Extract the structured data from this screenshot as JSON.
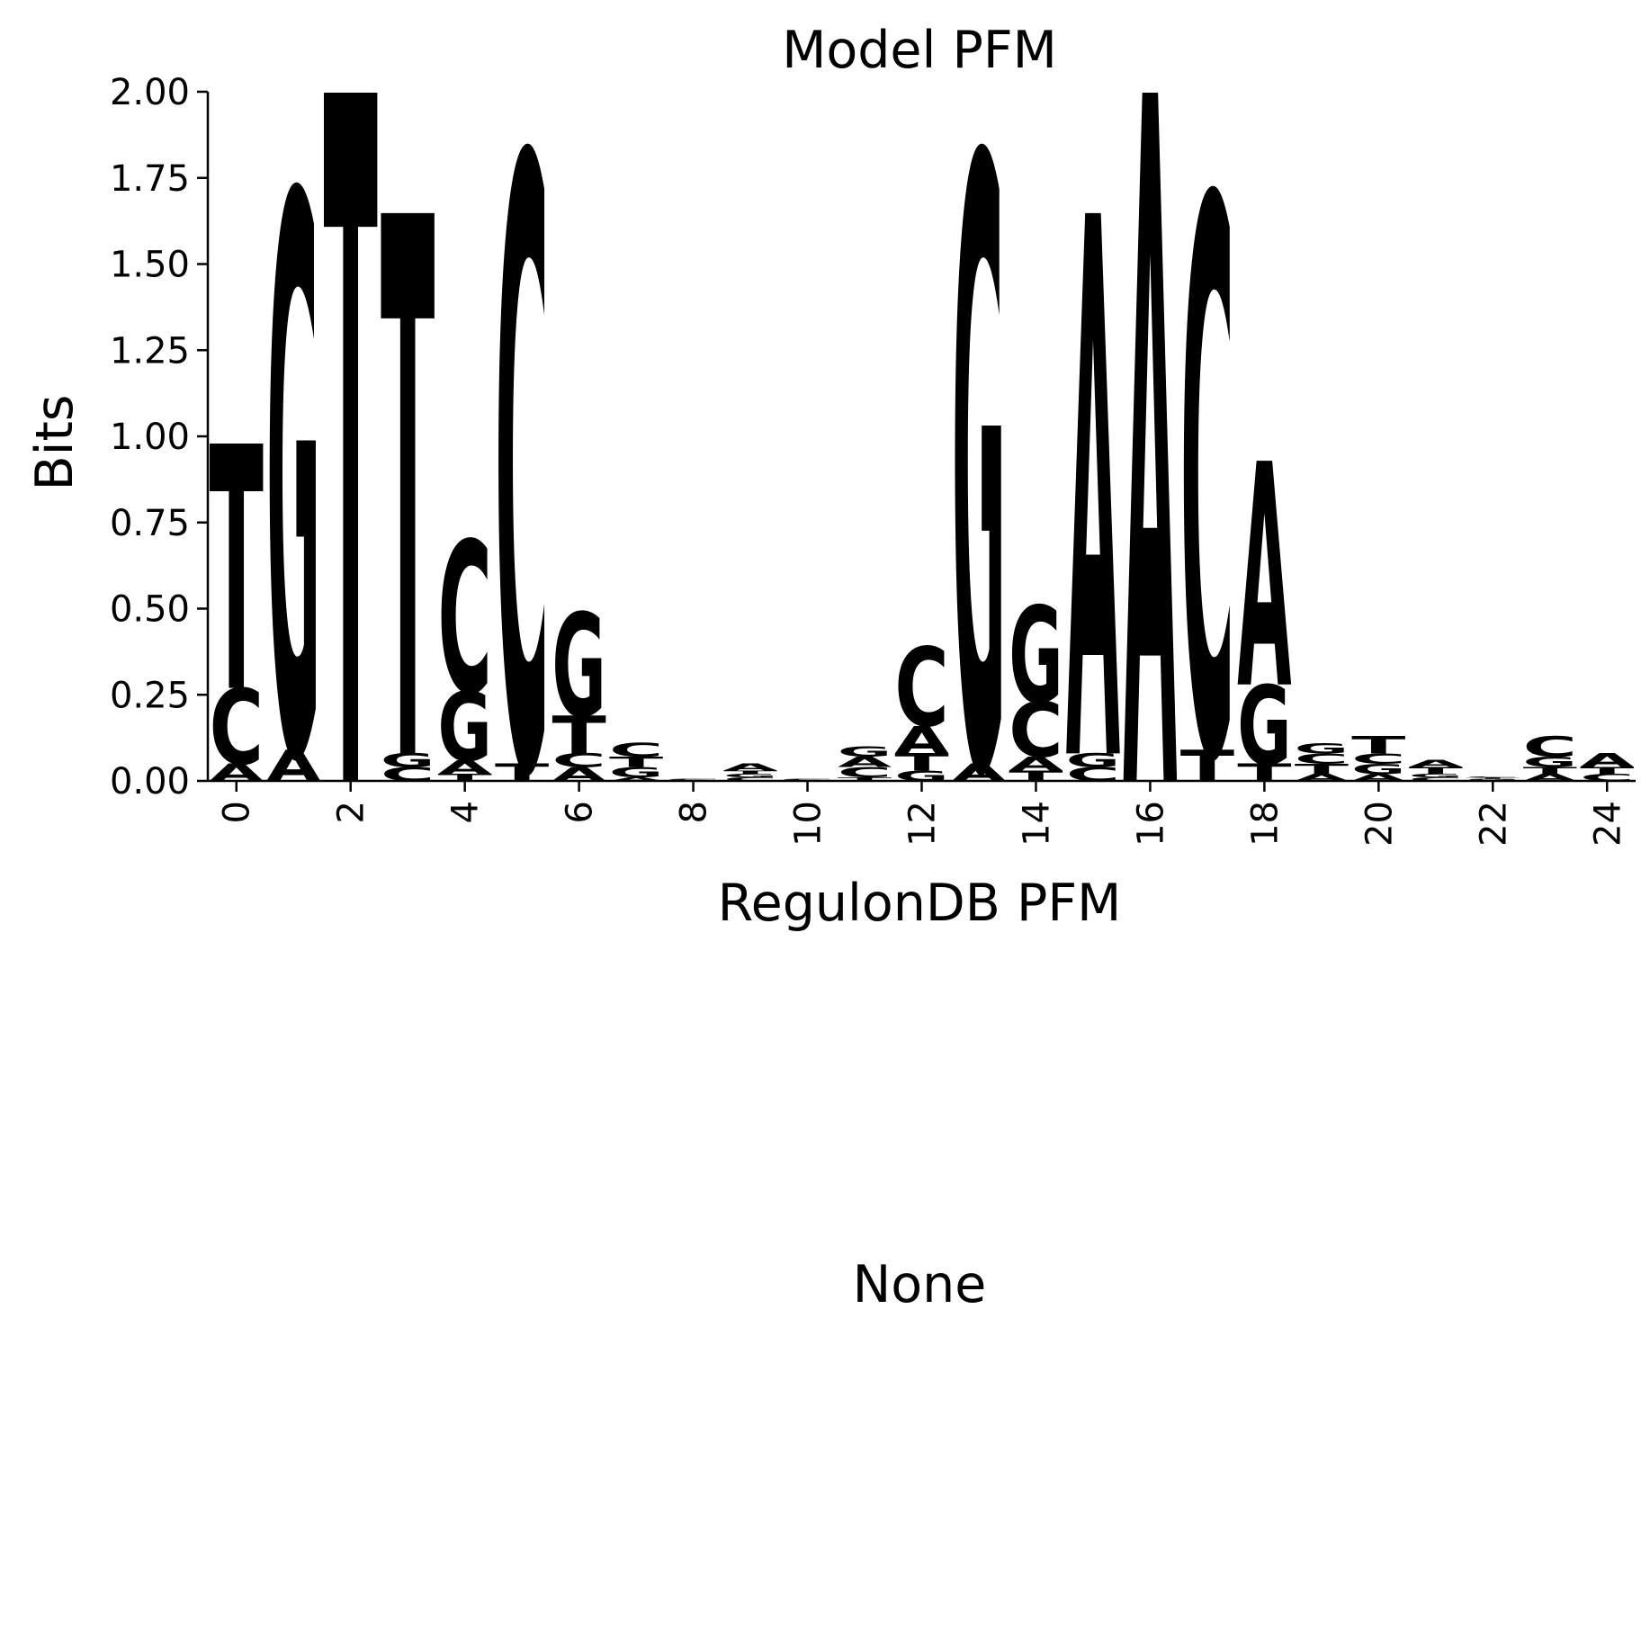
{
  "chart_data": [
    {
      "type": "sequence-logo",
      "title": "Model PFM",
      "xlabel": "RegulonDB PFM",
      "ylabel": "Bits",
      "ylim": [
        0,
        2.0
      ],
      "xlim": [
        -0.5,
        24.5
      ],
      "y_ticks": [
        "0.00",
        "0.25",
        "0.50",
        "0.75",
        "1.00",
        "1.25",
        "1.50",
        "1.75",
        "2.00"
      ],
      "x_ticks": [
        "0",
        "2",
        "4",
        "6",
        "8",
        "10",
        "12",
        "14",
        "16",
        "18",
        "20",
        "22",
        "24"
      ],
      "grid": false,
      "colors": {
        "A": "#ff0000",
        "C": "#0000ff",
        "G": "#ffa500",
        "T": "#008000"
      },
      "positions": [
        {
          "x": 0,
          "letters": [
            [
              "A",
              0.05
            ],
            [
              "C",
              0.22
            ],
            [
              "T",
              0.71
            ]
          ]
        },
        {
          "x": 1,
          "letters": [
            [
              "A",
              0.09
            ],
            [
              "G",
              1.62
            ]
          ]
        },
        {
          "x": 2,
          "letters": [
            [
              "T",
              2.0
            ]
          ]
        },
        {
          "x": 3,
          "letters": [
            [
              "C",
              0.04
            ],
            [
              "G",
              0.04
            ],
            [
              "T",
              1.57
            ]
          ]
        },
        {
          "x": 4,
          "letters": [
            [
              "T",
              0.02
            ],
            [
              "A",
              0.04
            ],
            [
              "G",
              0.2
            ],
            [
              "C",
              0.44
            ]
          ]
        },
        {
          "x": 5,
          "letters": [
            [
              "T",
              0.05
            ],
            [
              "C",
              1.77
            ]
          ]
        },
        {
          "x": 6,
          "letters": [
            [
              "A",
              0.04
            ],
            [
              "C",
              0.04
            ],
            [
              "T",
              0.11
            ],
            [
              "G",
              0.3
            ]
          ]
        },
        {
          "x": 7,
          "letters": [
            [
              "A",
              0.01
            ],
            [
              "G",
              0.03
            ],
            [
              "T",
              0.03
            ],
            [
              "C",
              0.04
            ]
          ]
        },
        {
          "x": 8,
          "letters": [
            [
              "A",
              0.003
            ],
            [
              "C",
              0.003
            ]
          ]
        },
        {
          "x": 9,
          "letters": [
            [
              "C",
              0.01
            ],
            [
              "G",
              0.01
            ],
            [
              "T",
              0.01
            ],
            [
              "A",
              0.02
            ]
          ]
        },
        {
          "x": 10,
          "letters": [
            [
              "A",
              0.003
            ],
            [
              "C",
              0.003
            ]
          ]
        },
        {
          "x": 11,
          "letters": [
            [
              "T",
              0.01
            ],
            [
              "C",
              0.03
            ],
            [
              "A",
              0.03
            ],
            [
              "G",
              0.03
            ]
          ]
        },
        {
          "x": 12,
          "letters": [
            [
              "G",
              0.03
            ],
            [
              "T",
              0.05
            ],
            [
              "A",
              0.08
            ],
            [
              "C",
              0.23
            ]
          ]
        },
        {
          "x": 13,
          "letters": [
            [
              "A",
              0.05
            ],
            [
              "G",
              1.77
            ]
          ]
        },
        {
          "x": 14,
          "letters": [
            [
              "T",
              0.03
            ],
            [
              "A",
              0.04
            ],
            [
              "C",
              0.16
            ],
            [
              "G",
              0.28
            ]
          ]
        },
        {
          "x": 15,
          "letters": [
            [
              "C",
              0.04
            ],
            [
              "G",
              0.04
            ],
            [
              "A",
              1.57
            ]
          ]
        },
        {
          "x": 16,
          "letters": [
            [
              "A",
              2.0
            ]
          ]
        },
        {
          "x": 17,
          "letters": [
            [
              "T",
              0.09
            ],
            [
              "C",
              1.61
            ]
          ]
        },
        {
          "x": 18,
          "letters": [
            [
              "T",
              0.05
            ],
            [
              "G",
              0.23
            ],
            [
              "A",
              0.65
            ]
          ]
        },
        {
          "x": 19,
          "letters": [
            [
              "A",
              0.02
            ],
            [
              "T",
              0.03
            ],
            [
              "C",
              0.03
            ],
            [
              "G",
              0.03
            ]
          ]
        },
        {
          "x": 20,
          "letters": [
            [
              "A",
              0.02
            ],
            [
              "G",
              0.03
            ],
            [
              "C",
              0.03
            ],
            [
              "T",
              0.05
            ]
          ]
        },
        {
          "x": 21,
          "letters": [
            [
              "C",
              0.01
            ],
            [
              "G",
              0.01
            ],
            [
              "T",
              0.02
            ],
            [
              "A",
              0.02
            ]
          ]
        },
        {
          "x": 22,
          "letters": [
            [
              "A",
              0.003
            ],
            [
              "G",
              0.003
            ],
            [
              "T",
              0.003
            ],
            [
              "C",
              0.004
            ]
          ]
        },
        {
          "x": 23,
          "letters": [
            [
              "A",
              0.02
            ],
            [
              "T",
              0.02
            ],
            [
              "G",
              0.03
            ],
            [
              "C",
              0.06
            ]
          ]
        },
        {
          "x": 24,
          "letters": [
            [
              "C",
              0.02
            ],
            [
              "T",
              0.02
            ],
            [
              "A",
              0.04
            ]
          ]
        }
      ]
    },
    {
      "type": "empty",
      "title": "None"
    }
  ]
}
